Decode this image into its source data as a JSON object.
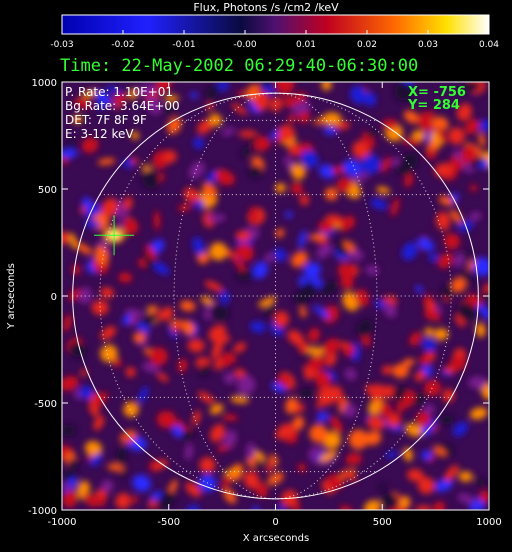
{
  "chart_data": {
    "type": "heatmap",
    "colorbar": {
      "title": "Flux, Photons /s /cm2 /keV",
      "ticks": [
        "-0.03",
        "-0.02",
        "-0.01",
        "-0.00",
        "0.01",
        "0.02",
        "0.03",
        "0.04"
      ],
      "range": [
        -0.03,
        0.04
      ]
    },
    "time_label": "Time: 22-May-2002 06:29:40-06:30:00",
    "info_lines": [
      "P. Rate:  1.10E+01",
      "Bg.Rate:  3.64E+00",
      "DET: 7F 8F 9F",
      "E: 3-12 keV"
    ],
    "cursor": {
      "x_label": "X= -756",
      "y_label": "Y=  284",
      "x": -756,
      "y": 284
    },
    "xlabel": "X arcseconds",
    "ylabel": "Y arcseconds",
    "xlim": [
      -1000,
      1000
    ],
    "ylim": [
      -1000,
      1000
    ],
    "x_ticks": [
      -1000,
      -500,
      0,
      500,
      1000
    ],
    "y_ticks": [
      -1000,
      -500,
      0,
      500,
      1000
    ],
    "solar_limb_radius": 950,
    "grid": true,
    "colors": {
      "background": "#000000",
      "cursor": "#33ff33",
      "time_text": "#33ff33",
      "info_text": "#ffffff"
    }
  }
}
